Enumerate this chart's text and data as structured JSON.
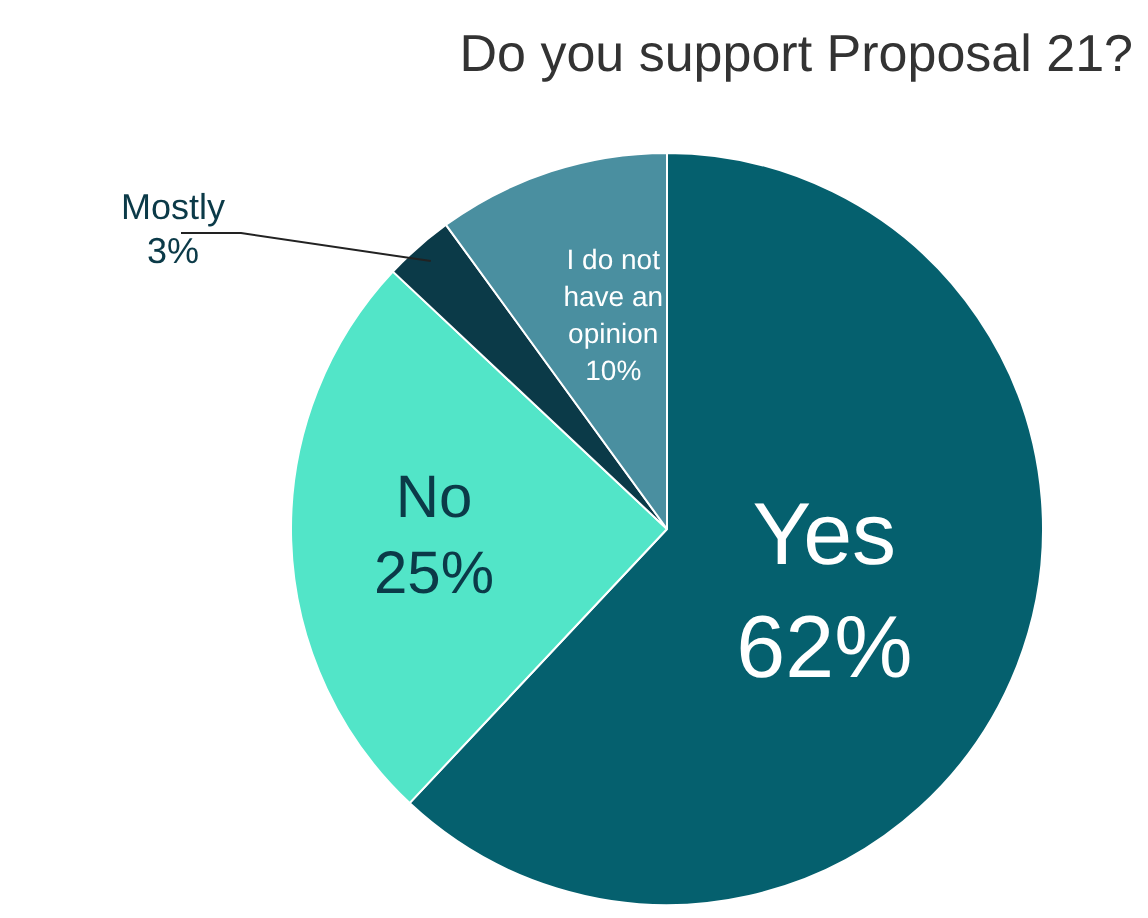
{
  "chart_data": {
    "type": "pie",
    "title": "Do you support Proposal 21?",
    "categories": [
      "Yes",
      "No",
      "Mostly",
      "I do not have an opinion"
    ],
    "values": [
      62,
      25,
      3,
      10
    ],
    "value_labels": [
      "62%",
      "25%",
      "3%",
      "10%"
    ],
    "colors": [
      "#05606e",
      "#52e5c8",
      "#0b3a48",
      "#4a8fa0"
    ]
  }
}
